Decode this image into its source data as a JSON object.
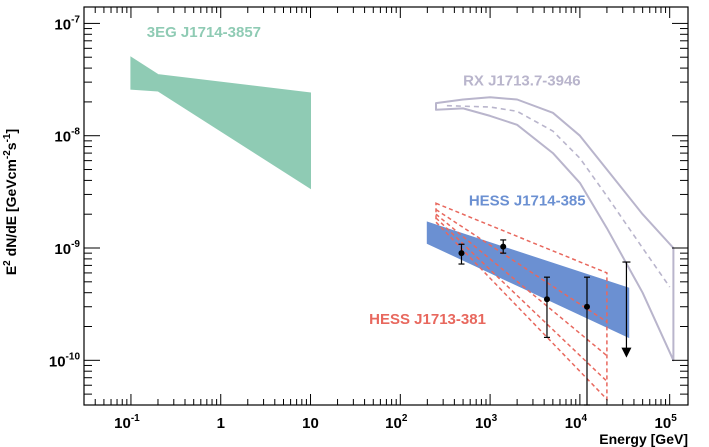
{
  "chart_data": {
    "type": "scatter",
    "title": "",
    "xlabel": "Energy [GeV]",
    "ylabel": {
      "prefix": "E",
      "exp1": "2",
      "mid": " dN/dE [GeVcm",
      "exp2": "-2",
      "mid2": "s",
      "exp3": "-1",
      "suffix": "]"
    },
    "x_scale": "log",
    "y_scale": "log",
    "xlim": [
      0.03,
      160000
    ],
    "ylim": [
      4e-11,
      1.4e-07
    ],
    "grid": false,
    "x_ticks": [
      {
        "value": 0.1,
        "base": "10",
        "exp": "-1"
      },
      {
        "value": 1,
        "base": "1",
        "exp": ""
      },
      {
        "value": 10,
        "base": "10",
        "exp": ""
      },
      {
        "value": 100,
        "base": "10",
        "exp": "2"
      },
      {
        "value": 1000,
        "base": "10",
        "exp": "3"
      },
      {
        "value": 10000,
        "base": "10",
        "exp": "4"
      },
      {
        "value": 100000,
        "base": "10",
        "exp": "5"
      }
    ],
    "y_ticks": [
      {
        "value": 1e-10,
        "base": "10",
        "exp": "-10"
      },
      {
        "value": 1e-09,
        "base": "10",
        "exp": "-9"
      },
      {
        "value": 1e-08,
        "base": "10",
        "exp": "-8"
      },
      {
        "value": 1e-07,
        "base": "10",
        "exp": "-7"
      }
    ],
    "series": [
      {
        "name": "3EG J1714-3857",
        "kind": "band",
        "color": "#8fcbb4",
        "polygon": [
          [
            0.1,
            5e-08
          ],
          [
            0.2,
            3.5e-08
          ],
          [
            10,
            2.4e-08
          ],
          [
            10,
            3.4e-09
          ],
          [
            0.2,
            2.5e-08
          ],
          [
            0.1,
            2.6e-08
          ]
        ]
      },
      {
        "name": "RX J1713.7-3946",
        "kind": "envelope",
        "color": "#b9b5cc",
        "upper": [
          [
            250,
            1.95e-08
          ],
          [
            500,
            2.1e-08
          ],
          [
            1000,
            2.2e-08
          ],
          [
            2000,
            2.1e-08
          ],
          [
            5000,
            1.6e-08
          ],
          [
            10000,
            1e-08
          ],
          [
            20000,
            5e-09
          ],
          [
            50000,
            2e-09
          ],
          [
            110000,
            1e-09
          ]
        ],
        "lower": [
          [
            250,
            1.7e-08
          ],
          [
            500,
            1.75e-08
          ],
          [
            1000,
            1.5e-08
          ],
          [
            2000,
            1.25e-08
          ],
          [
            5000,
            7e-09
          ],
          [
            10000,
            3.8e-09
          ],
          [
            20000,
            1.5e-09
          ],
          [
            50000,
            4e-10
          ],
          [
            110000,
            1e-10
          ]
        ],
        "middle": [
          [
            330,
            1.85e-08
          ],
          [
            1000,
            1.8e-08
          ],
          [
            2000,
            1.65e-08
          ],
          [
            5000,
            1.1e-08
          ],
          [
            10000,
            6.3e-09
          ],
          [
            20000,
            2.9e-09
          ],
          [
            50000,
            1e-09
          ],
          [
            100000,
            4.5e-10
          ]
        ]
      },
      {
        "name": "HESS J1714-385",
        "kind": "band",
        "color": "#6b90d2",
        "polygon": [
          [
            200,
            1.7e-09
          ],
          [
            35000,
            4.4e-10
          ],
          [
            35000,
            1.6e-10
          ],
          [
            200,
            1.1e-09
          ]
        ]
      },
      {
        "name": "HESS J1713-381",
        "kind": "dashed-bowtie",
        "color": "#e8685e",
        "polygon": [
          [
            250,
            2.5e-09
          ],
          [
            20000,
            6e-10
          ],
          [
            20000,
            4.5e-11
          ],
          [
            250,
            1.7e-09
          ]
        ],
        "inner_lines": [
          [
            [
              250,
              2.2e-09
            ],
            [
              20000,
              2.2e-10
            ]
          ],
          [
            [
              250,
              2e-09
            ],
            [
              20000,
              1.1e-10
            ]
          ],
          [
            [
              250,
              1.85e-09
            ],
            [
              20000,
              6.5e-11
            ]
          ]
        ]
      },
      {
        "name": "HESS J1714-385 data points",
        "kind": "points",
        "color": "#000000",
        "points": [
          {
            "x": 480,
            "y": 9e-10,
            "ylo": 7.2e-10,
            "yhi": 1.08e-09
          },
          {
            "x": 1400,
            "y": 1.03e-09,
            "ylo": 9e-10,
            "yhi": 1.18e-09
          },
          {
            "x": 4300,
            "y": 3.5e-10,
            "ylo": 1.6e-10,
            "yhi": 5.5e-10
          },
          {
            "x": 12000,
            "y": 3e-10,
            "ylo": 4e-11,
            "yhi": 5.5e-10
          }
        ],
        "upper_limits": [
          {
            "x": 33000,
            "y": 7.5e-10,
            "arrow_to": 1.1e-10
          }
        ]
      }
    ],
    "annotations": [
      {
        "text": "3EG J1714-3857",
        "color": "#8fcbb4",
        "x": 0.15,
        "y": 7.6e-08
      },
      {
        "text": "RX J1713.7-3946",
        "color": "#b9b5cc",
        "x": 500,
        "y": 2.8e-08
      },
      {
        "text": "HESS J1714-385",
        "color": "#6b90d2",
        "x": 580,
        "y": 2.4e-09
      },
      {
        "text": "HESS J1713-381",
        "color": "#e8685e",
        "x": 45,
        "y": 2.1e-10
      }
    ]
  }
}
